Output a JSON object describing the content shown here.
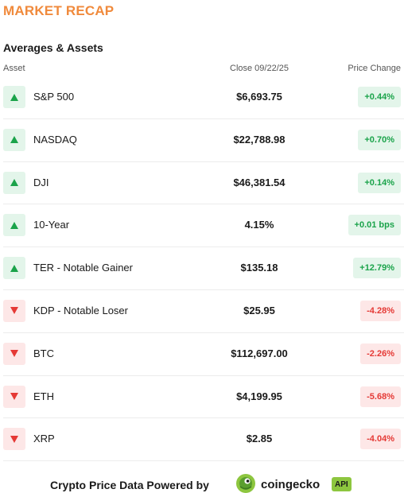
{
  "title": "MARKET RECAP",
  "section_title": "Averages & Assets",
  "headers": {
    "asset": "Asset",
    "close": "Close 09/22/25",
    "change": "Price Change"
  },
  "rows": [
    {
      "name": "S&P 500",
      "close": "$6,693.75",
      "change": "+0.44%",
      "direction": "up"
    },
    {
      "name": "NASDAQ",
      "close": "$22,788.98",
      "change": "+0.70%",
      "direction": "up"
    },
    {
      "name": "DJI",
      "close": "$46,381.54",
      "change": "+0.14%",
      "direction": "up"
    },
    {
      "name": "10-Year",
      "close": "4.15%",
      "change": "+0.01 bps",
      "direction": "up"
    },
    {
      "name": "TER - Notable Gainer",
      "close": "$135.18",
      "change": "+12.79%",
      "direction": "up"
    },
    {
      "name": "KDP - Notable Loser",
      "close": "$25.95",
      "change": "-4.28%",
      "direction": "down"
    },
    {
      "name": "BTC",
      "close": "$112,697.00",
      "change": "-2.26%",
      "direction": "down"
    },
    {
      "name": "ETH",
      "close": "$4,199.95",
      "change": "-5.68%",
      "direction": "down"
    },
    {
      "name": "XRP",
      "close": "$2.85",
      "change": "-4.04%",
      "direction": "down"
    }
  ],
  "footer": {
    "text": "Crypto Price Data Powered by",
    "brand": "coingecko",
    "badge": "API",
    "logo_icon": "coingecko-gecko-icon"
  },
  "colors": {
    "title": "#f08a3c",
    "up": "#1aa34a",
    "up_bg": "#e3f5ea",
    "down": "#e53935",
    "down_bg": "#fde7e7",
    "badge_bg": "#8dc63f"
  }
}
